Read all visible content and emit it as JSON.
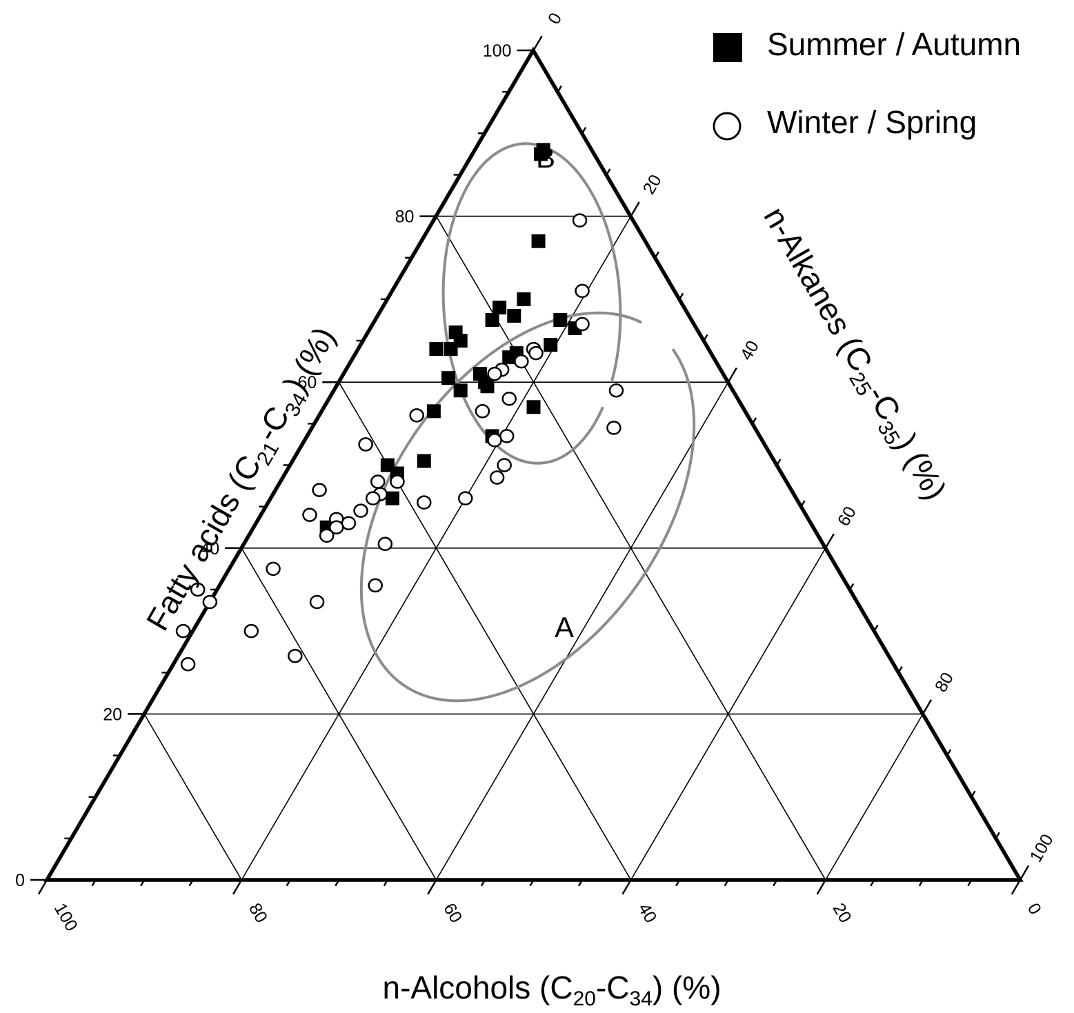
{
  "chart_data": {
    "type": "scatter",
    "subtype": "ternary",
    "axes": {
      "left": {
        "label_main": "Fatty acids (C",
        "sub1": "21",
        "mid": "-C",
        "sub2": "34",
        "tail": ") (%)",
        "ticks": [
          "0",
          "20",
          "40",
          "60",
          "80",
          "100"
        ]
      },
      "right": {
        "label_main": "n-Alkanes (C",
        "sub1": "25",
        "mid": "-C",
        "sub2": "35",
        "tail": ") (%)",
        "ticks": [
          "0",
          "20",
          "40",
          "60",
          "80",
          "100"
        ]
      },
      "bottom": {
        "label_main": "n-Alcohols (C",
        "sub1": "20",
        "mid": "-C",
        "sub2": "34",
        "tail": ") (%)",
        "ticks": [
          "100",
          "80",
          "60",
          "40",
          "20",
          "0"
        ]
      }
    },
    "grid": true,
    "legend": {
      "position": "top-right",
      "entries": [
        {
          "name": "Summer / Autumn",
          "marker": "filled-square"
        },
        {
          "name": "Winter / Spring",
          "marker": "open-circle"
        }
      ]
    },
    "regions": [
      {
        "label": "A",
        "color": "#8c8c8c"
      },
      {
        "label": "B",
        "color": "#8c8c8c"
      }
    ],
    "series": [
      {
        "name": "Summer / Autumn",
        "marker": "filled-square",
        "points": [
          {
            "fatty_acids": 88,
            "n_alkanes": 7,
            "n_alcohols": 5
          },
          {
            "fatty_acids": 87.5,
            "n_alkanes": 7,
            "n_alcohols": 5.5
          },
          {
            "fatty_acids": 77,
            "n_alkanes": 12,
            "n_alcohols": 11
          },
          {
            "fatty_acids": 70,
            "n_alkanes": 14,
            "n_alcohols": 16
          },
          {
            "fatty_acids": 69,
            "n_alkanes": 12,
            "n_alcohols": 19
          },
          {
            "fatty_acids": 68,
            "n_alkanes": 14,
            "n_alcohols": 18
          },
          {
            "fatty_acids": 67.5,
            "n_alkanes": 12,
            "n_alcohols": 20.5
          },
          {
            "fatty_acids": 67.5,
            "n_alkanes": 19,
            "n_alcohols": 13.5
          },
          {
            "fatty_acids": 66.5,
            "n_alkanes": 21,
            "n_alcohols": 12.5
          },
          {
            "fatty_acids": 66,
            "n_alkanes": 9,
            "n_alcohols": 25
          },
          {
            "fatty_acids": 65,
            "n_alkanes": 10,
            "n_alcohols": 25
          },
          {
            "fatty_acids": 64.5,
            "n_alkanes": 19.5,
            "n_alcohols": 16
          },
          {
            "fatty_acids": 64,
            "n_alkanes": 8,
            "n_alcohols": 28
          },
          {
            "fatty_acids": 64,
            "n_alkanes": 9.5,
            "n_alcohols": 26.5
          },
          {
            "fatty_acids": 63.5,
            "n_alkanes": 16.5,
            "n_alcohols": 20
          },
          {
            "fatty_acids": 63,
            "n_alkanes": 16,
            "n_alcohols": 21
          },
          {
            "fatty_acids": 61,
            "n_alkanes": 14,
            "n_alcohols": 25
          },
          {
            "fatty_acids": 60.5,
            "n_alkanes": 11,
            "n_alcohols": 28.5
          },
          {
            "fatty_acids": 60,
            "n_alkanes": 15,
            "n_alcohols": 25
          },
          {
            "fatty_acids": 59.5,
            "n_alkanes": 15.5,
            "n_alcohols": 25
          },
          {
            "fatty_acids": 59,
            "n_alkanes": 13,
            "n_alcohols": 28
          },
          {
            "fatty_acids": 57,
            "n_alkanes": 21.5,
            "n_alcohols": 21.5
          },
          {
            "fatty_acids": 56.5,
            "n_alkanes": 11.5,
            "n_alcohols": 32
          },
          {
            "fatty_acids": 53.5,
            "n_alkanes": 19,
            "n_alcohols": 27.5
          },
          {
            "fatty_acids": 50.5,
            "n_alkanes": 13.5,
            "n_alcohols": 36
          },
          {
            "fatty_acids": 50,
            "n_alkanes": 10,
            "n_alcohols": 40
          },
          {
            "fatty_acids": 49,
            "n_alkanes": 11.5,
            "n_alcohols": 39.5
          },
          {
            "fatty_acids": 46,
            "n_alkanes": 12.5,
            "n_alcohols": 41.5
          },
          {
            "fatty_acids": 42.5,
            "n_alkanes": 7.5,
            "n_alcohols": 50
          }
        ]
      },
      {
        "name": "Winter / Spring",
        "marker": "open-circle",
        "points": [
          {
            "fatty_acids": 79.5,
            "n_alkanes": 15,
            "n_alcohols": 5.5
          },
          {
            "fatty_acids": 71,
            "n_alkanes": 19.5,
            "n_alcohols": 9.5
          },
          {
            "fatty_acids": 67,
            "n_alkanes": 21.5,
            "n_alcohols": 11.5
          },
          {
            "fatty_acids": 64,
            "n_alkanes": 18,
            "n_alcohols": 18
          },
          {
            "fatty_acids": 63.5,
            "n_alkanes": 18.5,
            "n_alcohols": 18
          },
          {
            "fatty_acids": 62.5,
            "n_alkanes": 17.5,
            "n_alcohols": 20
          },
          {
            "fatty_acids": 61.5,
            "n_alkanes": 16,
            "n_alcohols": 22.5
          },
          {
            "fatty_acids": 61,
            "n_alkanes": 15.5,
            "n_alcohols": 23.5
          },
          {
            "fatty_acids": 59,
            "n_alkanes": 29,
            "n_alcohols": 12
          },
          {
            "fatty_acids": 58,
            "n_alkanes": 18.5,
            "n_alcohols": 23.5
          },
          {
            "fatty_acids": 56.5,
            "n_alkanes": 16.5,
            "n_alcohols": 27
          },
          {
            "fatty_acids": 56,
            "n_alkanes": 10,
            "n_alcohols": 34
          },
          {
            "fatty_acids": 54.5,
            "n_alkanes": 31,
            "n_alcohols": 14.5
          },
          {
            "fatty_acids": 53.5,
            "n_alkanes": 20.5,
            "n_alcohols": 26
          },
          {
            "fatty_acids": 53,
            "n_alkanes": 19.5,
            "n_alcohols": 27.5
          },
          {
            "fatty_acids": 52.5,
            "n_alkanes": 6.5,
            "n_alcohols": 41
          },
          {
            "fatty_acids": 50,
            "n_alkanes": 22,
            "n_alcohols": 28
          },
          {
            "fatty_acids": 48.5,
            "n_alkanes": 22,
            "n_alcohols": 29.5
          },
          {
            "fatty_acids": 48,
            "n_alkanes": 10,
            "n_alcohols": 42
          },
          {
            "fatty_acids": 48,
            "n_alkanes": 12,
            "n_alcohols": 40
          },
          {
            "fatty_acids": 47,
            "n_alkanes": 4.5,
            "n_alcohols": 48.5
          },
          {
            "fatty_acids": 46.5,
            "n_alkanes": 11,
            "n_alcohols": 42.5
          },
          {
            "fatty_acids": 46,
            "n_alkanes": 10.5,
            "n_alcohols": 43.5
          },
          {
            "fatty_acids": 46,
            "n_alkanes": 20,
            "n_alcohols": 34
          },
          {
            "fatty_acids": 45.5,
            "n_alkanes": 16,
            "n_alcohols": 38.5
          },
          {
            "fatty_acids": 44.5,
            "n_alkanes": 10,
            "n_alcohols": 45.5
          },
          {
            "fatty_acids": 44,
            "n_alkanes": 5,
            "n_alcohols": 51
          },
          {
            "fatty_acids": 43.5,
            "n_alkanes": 8,
            "n_alcohols": 48.5
          },
          {
            "fatty_acids": 43,
            "n_alkanes": 9.5,
            "n_alcohols": 47.5
          },
          {
            "fatty_acids": 42.5,
            "n_alkanes": 8.5,
            "n_alcohols": 49
          },
          {
            "fatty_acids": 41.5,
            "n_alkanes": 8,
            "n_alcohols": 50.5
          },
          {
            "fatty_acids": 40.5,
            "n_alkanes": 14.5,
            "n_alcohols": 45
          },
          {
            "fatty_acids": 37.5,
            "n_alkanes": 4.5,
            "n_alcohols": 58
          },
          {
            "fatty_acids": 35.5,
            "n_alkanes": 16,
            "n_alcohols": 48.5
          },
          {
            "fatty_acids": 35,
            "n_alkanes": -2,
            "n_alcohols": 67
          },
          {
            "fatty_acids": 33.5,
            "n_alkanes": 0,
            "n_alcohols": 66.5
          },
          {
            "fatty_acids": 33.5,
            "n_alkanes": 11,
            "n_alcohols": 55.5
          },
          {
            "fatty_acids": 30,
            "n_alkanes": -1,
            "n_alcohols": 71
          },
          {
            "fatty_acids": 30,
            "n_alkanes": 6,
            "n_alcohols": 64
          },
          {
            "fatty_acids": 27,
            "n_alkanes": 12,
            "n_alcohols": 61
          },
          {
            "fatty_acids": 26,
            "n_alkanes": 1.5,
            "n_alcohols": 72.5
          }
        ]
      }
    ]
  }
}
